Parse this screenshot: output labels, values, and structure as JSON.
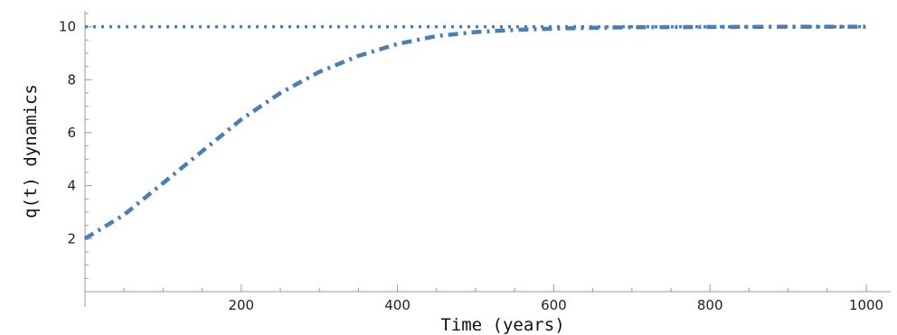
{
  "chart_data": {
    "type": "line",
    "xlabel": "Time (years)",
    "ylabel": "q(t) dynamics",
    "xlim": [
      0,
      1000
    ],
    "ylim": [
      0,
      10.6
    ],
    "x_ticks": [
      200,
      400,
      600,
      800,
      1000
    ],
    "y_ticks": [
      2,
      4,
      6,
      8,
      10
    ],
    "grid": false,
    "series": [
      {
        "style": "dotted",
        "color": "#4a7fb5",
        "x": [
          0,
          100,
          200,
          300,
          400,
          500,
          600,
          700,
          800,
          900,
          1000
        ],
        "y": [
          10,
          10,
          10,
          10,
          10,
          10,
          10,
          10,
          10,
          10,
          10
        ]
      },
      {
        "style": "dash-dot",
        "color": "#4a7fb5",
        "x": [
          0,
          50,
          100,
          150,
          200,
          250,
          300,
          350,
          400,
          450,
          500,
          550,
          600,
          650,
          700,
          800,
          900,
          1000
        ],
        "y": [
          2.0,
          2.9,
          4.1,
          5.3,
          6.5,
          7.5,
          8.3,
          8.9,
          9.35,
          9.65,
          9.8,
          9.88,
          9.93,
          9.96,
          9.98,
          9.99,
          10.0,
          10.0
        ]
      }
    ]
  }
}
